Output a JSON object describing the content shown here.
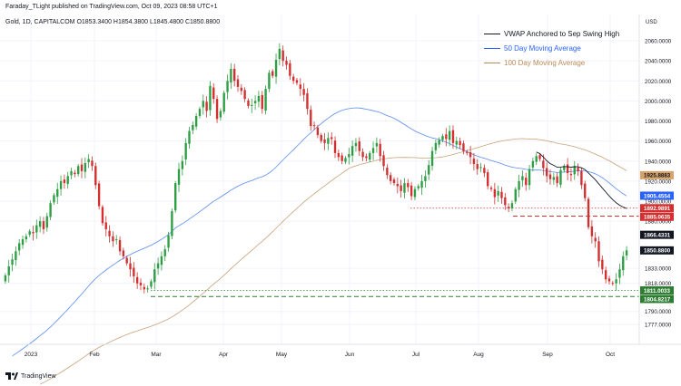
{
  "header": {
    "publisher": "Faraday_TLight published on TradingView.com, Oct 09, 2023 08:58 UTC+1",
    "symbol_line": "Gold, 1D, CAPITALCOM  O1853.3400  H1854.3800  L1845.4800  C1850.8800"
  },
  "axis": {
    "currency": "USD"
  },
  "legend": [
    {
      "label": "VWAP Anchored to Sep Swing High",
      "color": "#131722"
    },
    {
      "label": "50 Day Moving Average",
      "color": "#2962ff"
    },
    {
      "label": "100 Day Moving Average",
      "color": "#b98b5a"
    }
  ],
  "footer": {
    "brand": "TradingView"
  },
  "chart_data": {
    "type": "candlestick",
    "title": "Gold, 1D, CAPITALCOM",
    "ohlc_last": {
      "open": 1853.34,
      "high": 1854.38,
      "low": 1845.48,
      "close": 1850.88
    },
    "y_ticks": [
      2060,
      2040,
      2020,
      2000,
      1980,
      1960,
      1940,
      1920,
      1900,
      1880,
      1833,
      1818,
      1790,
      1777
    ],
    "ylim": [
      1777,
      2068
    ],
    "x_ticks": [
      "2023",
      "Feb",
      "Mar",
      "Apr",
      "May",
      "Jun",
      "Jul",
      "Aug",
      "Sep",
      "Oct"
    ],
    "price_labels": [
      {
        "value": 1925.8883,
        "text": "1925.8883",
        "bg": "#d6a36a",
        "fg": "#131722"
      },
      {
        "value": 1905.4554,
        "text": "1905.4554",
        "bg": "#2962ff",
        "fg": "#ffffff"
      },
      {
        "value": 1892.9891,
        "text": "1892.9891",
        "bg": "#d32f2f",
        "fg": "#ffffff"
      },
      {
        "value": 1885.0635,
        "text": "1885.0635",
        "bg": "#d32f2f",
        "fg": "#ffffff"
      },
      {
        "value": 1866.4331,
        "text": "1866.4331",
        "bg": "#131722",
        "fg": "#ffffff"
      },
      {
        "value": 1850.88,
        "text": "1850.8800",
        "bg": "#131722",
        "fg": "#ffffff"
      },
      {
        "value": 1811.0033,
        "text": "1811.0033",
        "bg": "#2e7d32",
        "fg": "#ffffff"
      },
      {
        "value": 1804.8217,
        "text": "1804.8217",
        "bg": "#2e7d32",
        "fg": "#ffffff"
      }
    ],
    "levels": [
      {
        "value": 1892.99,
        "color": "#d32f2f",
        "style": "dotted",
        "from": "Jul"
      },
      {
        "value": 1885.06,
        "color": "#d32f2f",
        "style": "dashed",
        "from": "Aug"
      },
      {
        "value": 1811.0,
        "color": "#2e7d32",
        "style": "dotted",
        "from": "Mar"
      },
      {
        "value": 1804.82,
        "color": "#2e7d32",
        "style": "dashed",
        "from": "Mar"
      }
    ],
    "closes": [
      1826,
      1835,
      1842,
      1850,
      1858,
      1862,
      1865,
      1870,
      1868,
      1876,
      1880,
      1872,
      1885,
      1898,
      1906,
      1912,
      1920,
      1918,
      1925,
      1930,
      1927,
      1935,
      1930,
      1938,
      1942,
      1935,
      1916,
      1895,
      1878,
      1872,
      1865,
      1860,
      1862,
      1850,
      1845,
      1838,
      1832,
      1825,
      1818,
      1816,
      1812,
      1813,
      1820,
      1832,
      1838,
      1845,
      1852,
      1866,
      1890,
      1918,
      1932,
      1940,
      1958,
      1970,
      1976,
      1985,
      1992,
      2000,
      1990,
      2015,
      2002,
      1982,
      1990,
      2008,
      2020,
      2032,
      2020,
      2014,
      2010,
      2002,
      1995,
      1996,
      2000,
      2005,
      1992,
      2012,
      2028,
      2025,
      2041,
      2052,
      2040,
      2036,
      2025,
      2020,
      2018,
      2012,
      2006,
      1992,
      1975,
      1975,
      1966,
      1960,
      1958,
      1963,
      1962,
      1948,
      1944,
      1940,
      1943,
      1947,
      1955,
      1958,
      1950,
      1944,
      1943,
      1948,
      1953,
      1958,
      1945,
      1935,
      1926,
      1920,
      1918,
      1915,
      1910,
      1918,
      1914,
      1905,
      1912,
      1915,
      1920,
      1925,
      1936,
      1950,
      1958,
      1961,
      1965,
      1962,
      1970,
      1958,
      1960,
      1956,
      1950,
      1948,
      1944,
      1937,
      1932,
      1934,
      1928,
      1915,
      1912,
      1904,
      1910,
      1903,
      1896,
      1893,
      1898,
      1912,
      1920,
      1925,
      1916,
      1932,
      1940,
      1945,
      1942,
      1933,
      1925,
      1922,
      1924,
      1918,
      1931,
      1935,
      1928,
      1926,
      1935,
      1930,
      1916,
      1903,
      1874,
      1865,
      1860,
      1840,
      1832,
      1822,
      1820,
      1818,
      1822,
      1832,
      1845,
      1851
    ]
  }
}
